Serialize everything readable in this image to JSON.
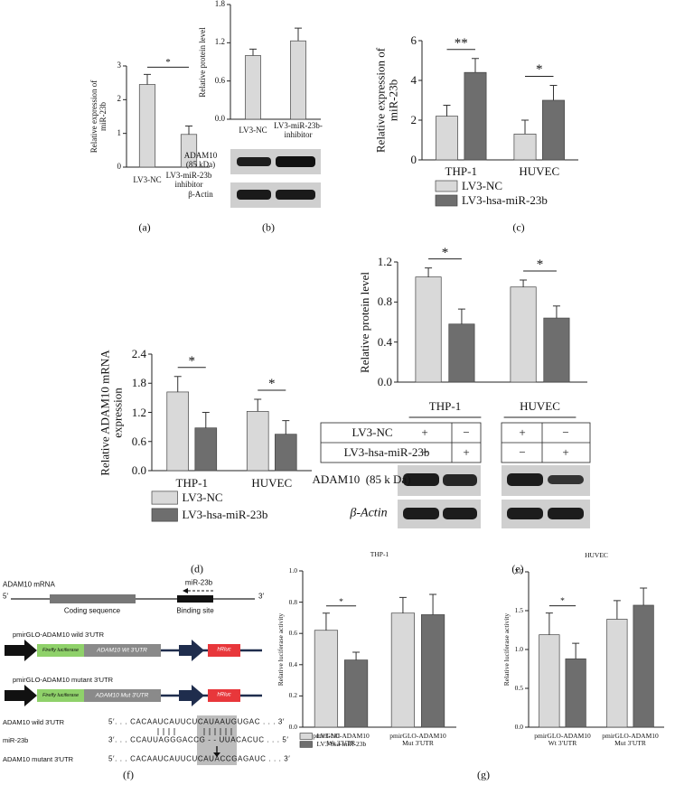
{
  "chart_data": [
    {
      "type": "bar",
      "ylabel": "Relative expression of\nmiR-23b",
      "categories": [
        "LV3-NC",
        "LV3-miR-23b\ninhibitor"
      ],
      "values": [
        2.45,
        0.97
      ],
      "errors": [
        0.3,
        0.25
      ],
      "color": "#d9d9d9",
      "ylim": [
        0,
        3
      ],
      "yticks": [
        0,
        1,
        2,
        3
      ],
      "annotations": [
        "*"
      ]
    },
    {
      "type": "bar",
      "ylabel": "Relative protein level",
      "categories": [
        "LV3-NC",
        "LV3-miR-23b-\ninhibitor"
      ],
      "values": [
        1.0,
        1.23
      ],
      "errors": [
        0.1,
        0.2
      ],
      "color": "#d9d9d9",
      "ylim": [
        0,
        1.8
      ],
      "yticks": [
        {
          "value": 0,
          "label": "0.0"
        },
        {
          "value": 0.6,
          "label": "0.6"
        },
        {
          "value": 1.2,
          "label": "1.2"
        },
        {
          "value": 1.8,
          "label": "1.8"
        }
      ]
    },
    {
      "type": "bar",
      "ylabel": "Relative expression of\nmiR-23b",
      "categories": [
        "THP-1",
        "HUVEC"
      ],
      "series": [
        {
          "name": "LV3-NC",
          "color": "#d9d9d9",
          "values": [
            2.2,
            1.3
          ],
          "errors": [
            0.55,
            0.7
          ]
        },
        {
          "name": "LV3-hsa-miR-23b",
          "color": "#6e6e6e",
          "values": [
            4.4,
            3.0
          ],
          "errors": [
            0.7,
            0.75
          ]
        }
      ],
      "ylim": [
        0,
        6
      ],
      "yticks": [
        0,
        2,
        4,
        6
      ],
      "annotations": [
        "**",
        "*"
      ]
    },
    {
      "type": "bar",
      "ylabel": "Relative ADAM10 mRNA\nexpression",
      "categories": [
        "THP-1",
        "HUVEC"
      ],
      "series": [
        {
          "name": "LV3-NC",
          "color": "#d9d9d9",
          "values": [
            1.62,
            1.22
          ],
          "errors": [
            0.32,
            0.25
          ]
        },
        {
          "name": "LV3-hsa-miR-23b",
          "color": "#6e6e6e",
          "values": [
            0.88,
            0.75
          ],
          "errors": [
            0.32,
            0.28
          ]
        }
      ],
      "ylim": [
        0,
        2.4
      ],
      "yticks": [
        {
          "value": 0,
          "label": "0.0"
        },
        {
          "value": 0.6,
          "label": "0.6"
        },
        {
          "value": 1.2,
          "label": "1.2"
        },
        {
          "value": 1.8,
          "label": "1.8"
        },
        {
          "value": 2.4,
          "label": "2.4"
        }
      ],
      "annotations": [
        "*",
        "*"
      ]
    },
    {
      "type": "bar",
      "ylabel": "Relative protein level",
      "categories": [
        "THP-1",
        "HUVEC"
      ],
      "series": [
        {
          "color": "#d9d9d9",
          "values": [
            1.05,
            0.95
          ],
          "errors": [
            0.09,
            0.07
          ]
        },
        {
          "color": "#6e6e6e",
          "values": [
            0.58,
            0.64
          ],
          "errors": [
            0.15,
            0.12
          ]
        }
      ],
      "ylim": [
        0,
        1.2
      ],
      "yticks": [
        {
          "value": 0,
          "label": "0.0"
        },
        {
          "value": 0.4,
          "label": "0.4"
        },
        {
          "value": 0.8,
          "label": "0.8"
        },
        {
          "value": 1.2,
          "label": "1.2"
        }
      ],
      "annotations": [
        "*",
        "*"
      ]
    },
    {
      "type": "bar",
      "title": "THP-1",
      "ylabel": "Relative luciferase activity",
      "categories": [
        "pmirGLO-ADAM10\nWt 3′UTR",
        "pmirGLO-ADAM10\nMut 3′UTR"
      ],
      "series": [
        {
          "name": "LV3-NC",
          "color": "#d9d9d9",
          "values": [
            0.62,
            0.73
          ],
          "errors": [
            0.11,
            0.1
          ]
        },
        {
          "name": "LV3-hsa-miR-23b",
          "color": "#6e6e6e",
          "values": [
            0.43,
            0.72
          ],
          "errors": [
            0.05,
            0.13
          ]
        }
      ],
      "ylim": [
        0,
        1.0
      ],
      "yticks": [
        {
          "value": 0,
          "label": "0.0"
        },
        {
          "value": 0.2,
          "label": "0.2"
        },
        {
          "value": 0.4,
          "label": "0.4"
        },
        {
          "value": 0.6,
          "label": "0.6"
        },
        {
          "value": 0.8,
          "label": "0.8"
        },
        {
          "value": 1.0,
          "label": "1.0"
        }
      ],
      "annotations": [
        "*"
      ]
    },
    {
      "type": "bar",
      "title": "HUVEC",
      "ylabel": "Relative luciferase activity",
      "categories": [
        "pmirGLO-ADAM10\nWt 3′UTR",
        "pmirGLO-ADAM10\nMut 3′UTR"
      ],
      "series": [
        {
          "color": "#d9d9d9",
          "values": [
            1.19,
            1.39
          ],
          "errors": [
            0.28,
            0.24
          ]
        },
        {
          "color": "#6e6e6e",
          "values": [
            0.88,
            1.57
          ],
          "errors": [
            0.2,
            0.22
          ]
        }
      ],
      "ylim": [
        0,
        2.0
      ],
      "yticks": [
        {
          "value": 0,
          "label": "0.0"
        },
        {
          "value": 0.5,
          "label": "0.5"
        },
        {
          "value": 1.0,
          "label": "1.0"
        },
        {
          "value": 1.5,
          "label": "1.5"
        },
        {
          "value": 2.0,
          "label": "2.0"
        }
      ],
      "annotations": [
        "*"
      ]
    }
  ],
  "blot_b": {
    "labels": [
      "ADAM10\n(85 kDa)",
      "β-Actin"
    ]
  },
  "blot_e": {
    "conditions": [
      "LV3-NC",
      "LV3-hsa-miR-23b"
    ],
    "signs": [
      [
        "+",
        "−",
        "+",
        "−"
      ],
      [
        "−",
        "+",
        "−",
        "+"
      ]
    ],
    "labels": [
      "ADAM10  (85 k Da)",
      "β-Actin"
    ]
  },
  "diagram_f": {
    "mrna": "ADAM10 mRNA",
    "five": "5′",
    "three": "3′",
    "coding": "Coding sequence",
    "mir": "miR-23b",
    "binding": "Binding site",
    "constructs": [
      {
        "title": "pmirGLO-ADAM10 wild 3′UTR",
        "luc": "Firefly luciferase",
        "utr": "ADAM10 Wt 3′UTR",
        "rluc": "hRluc"
      },
      {
        "title": "pmirGLO-ADAM10 mutant 3′UTR",
        "luc": "Firefly luciferase",
        "utr": "ADAM10 Mut 3′UTR",
        "rluc": "hRluc"
      }
    ],
    "sequences": [
      {
        "label": "ADAM10 wild 3′UTR",
        "seq": "5′. . . CACAAUCAUUCUCAUAAUGUGAC . . . 3′"
      },
      {
        "label": "miR-23b",
        "seq": "3′. . . CCAUUAGGGACCG - - UUACACUC . . . 5′"
      },
      {
        "label": "ADAM10 mutant 3′UTR",
        "seq": "5′. . . CACAAUCAUUCUCAUACCGAGAUC . . . 3′"
      }
    ]
  },
  "panel_labels": [
    "(a)",
    "(b)",
    "(c)",
    "(d)",
    "(e)",
    "(f)",
    "(g)"
  ]
}
